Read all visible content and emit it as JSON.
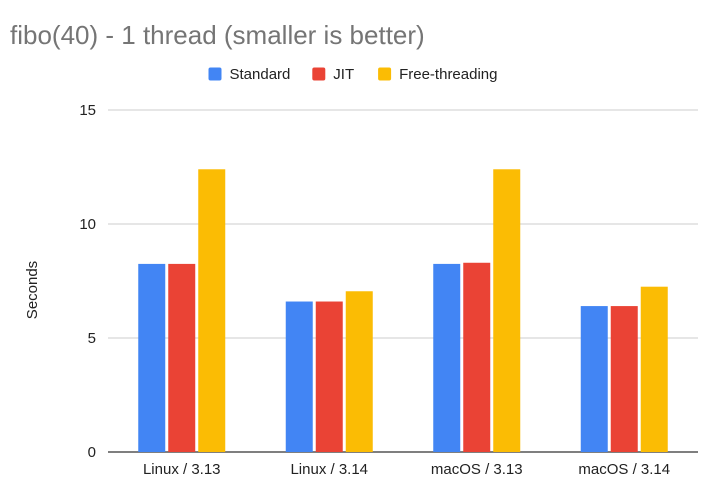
{
  "chart_data": {
    "type": "bar",
    "title": "fibo(40) - 1 thread (smaller is better)",
    "xlabel": "",
    "ylabel": "Seconds",
    "ylim": [
      0,
      15
    ],
    "yticks": [
      0,
      5,
      10,
      15
    ],
    "grid": true,
    "legend_position": "top",
    "categories": [
      "Linux / 3.13",
      "Linux / 3.14",
      "macOS / 3.13",
      "macOS / 3.14"
    ],
    "series": [
      {
        "name": "Standard",
        "color": "#4285f4",
        "values": [
          8.25,
          6.6,
          8.25,
          6.4
        ]
      },
      {
        "name": "JIT",
        "color": "#ea4335",
        "values": [
          8.25,
          6.6,
          8.3,
          6.4
        ]
      },
      {
        "name": "Free-threading",
        "color": "#fbbc04",
        "values": [
          12.4,
          7.05,
          12.4,
          7.25
        ]
      }
    ]
  }
}
